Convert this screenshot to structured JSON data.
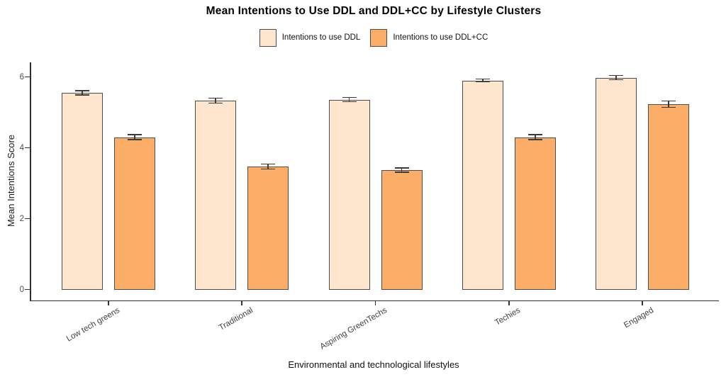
{
  "title": "Mean Intentions to Use DDL and DDL+CC by Lifestyle Clusters",
  "axes": {
    "y_title": "Mean Intentions Score",
    "x_title": "Environmental and technological lifestyles",
    "y_tick_labels": [
      "0",
      "2",
      "4",
      "6"
    ]
  },
  "legend": {
    "position": "top"
  },
  "chart_data": {
    "type": "bar",
    "title": "Mean Intentions to Use DDL and DDL+CC by Lifestyle Clusters",
    "xlabel": "Environmental and technological lifestyles",
    "ylabel": "Mean Intentions Score",
    "categories": [
      "Low tech greens",
      "Traditional",
      "Aspiring GreenTechs",
      "Techies",
      "Engaged"
    ],
    "series": [
      {
        "name": "Intentions to use DDL",
        "color": "#FEE6CE",
        "values": [
          5.55,
          5.33,
          5.36,
          5.9,
          5.98
        ],
        "errors": [
          0.06,
          0.07,
          0.06,
          0.04,
          0.06
        ]
      },
      {
        "name": "Intentions to use DDL+CC",
        "color": "#FCAD68",
        "values": [
          4.3,
          3.47,
          3.37,
          4.3,
          5.23
        ],
        "errors": [
          0.07,
          0.07,
          0.06,
          0.07,
          0.09
        ]
      }
    ],
    "yticks": [
      0,
      2,
      4,
      6
    ],
    "ylim": [
      0,
      6.3
    ],
    "grid": false,
    "error_bars": true,
    "legend_position": "top",
    "bar_border_color": "#4d4d4d",
    "error_bar_color": "#3a3a3a"
  }
}
